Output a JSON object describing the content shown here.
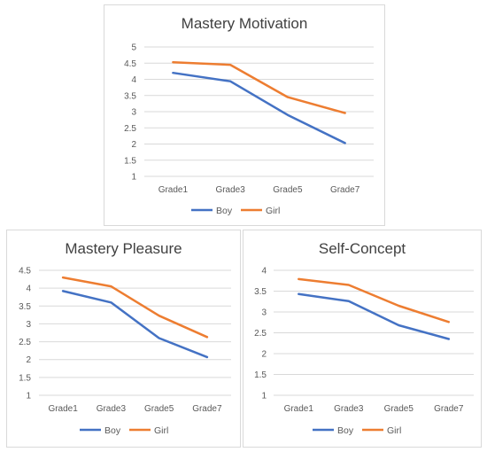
{
  "colors": {
    "boy": "#4472C4",
    "girl": "#ED7D31",
    "grid": "#d9d9d9",
    "text": "#595959",
    "title": "#404040"
  },
  "chart_data": [
    {
      "type": "line",
      "title": "Mastery Motivation",
      "xlabel": "",
      "ylabel": "",
      "categories": [
        "Grade1",
        "Grade3",
        "Grade5",
        "Grade7"
      ],
      "ylim": [
        1,
        5
      ],
      "yticks": [
        "1",
        "1.5",
        "2",
        "2.5",
        "3",
        "3.5",
        "4",
        "4.5",
        "5"
      ],
      "series": [
        {
          "name": "Boy",
          "values": [
            4.2,
            3.94,
            2.9,
            2.03
          ]
        },
        {
          "name": "Girl",
          "values": [
            4.53,
            4.45,
            3.45,
            2.96
          ]
        }
      ],
      "legend": "bottom",
      "grid": true
    },
    {
      "type": "line",
      "title": "Mastery Pleasure",
      "xlabel": "",
      "ylabel": "",
      "categories": [
        "Grade1",
        "Grade3",
        "Grade5",
        "Grade7"
      ],
      "ylim": [
        1,
        4.5
      ],
      "yticks": [
        "1",
        "1.5",
        "2",
        "2.5",
        "3",
        "3.5",
        "4",
        "4.5"
      ],
      "series": [
        {
          "name": "Boy",
          "values": [
            3.92,
            3.6,
            2.6,
            2.07
          ]
        },
        {
          "name": "Girl",
          "values": [
            4.3,
            4.05,
            3.23,
            2.63
          ]
        }
      ],
      "legend": "bottom",
      "grid": true
    },
    {
      "type": "line",
      "title": "Self-Concept",
      "xlabel": "",
      "ylabel": "",
      "categories": [
        "Grade1",
        "Grade3",
        "Grade5",
        "Grade7"
      ],
      "ylim": [
        1,
        4
      ],
      "yticks": [
        "1",
        "1.5",
        "2",
        "2.5",
        "3",
        "3.5",
        "4"
      ],
      "series": [
        {
          "name": "Boy",
          "values": [
            3.43,
            3.26,
            2.68,
            2.35
          ]
        },
        {
          "name": "Girl",
          "values": [
            3.79,
            3.65,
            3.15,
            2.76
          ]
        }
      ],
      "legend": "bottom",
      "grid": true
    }
  ]
}
